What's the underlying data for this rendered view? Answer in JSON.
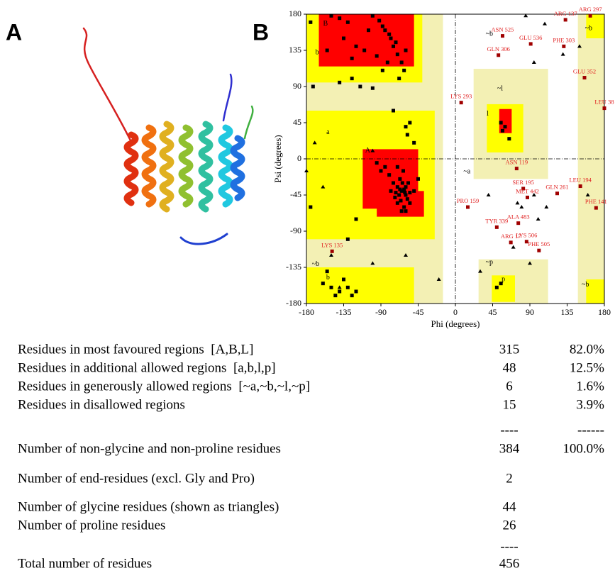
{
  "panel_labels": [
    "A",
    "B"
  ],
  "chart_data": {
    "type": "scatter",
    "xlabel": "Phi (degrees)",
    "ylabel": "Psi (degrees)",
    "xlim": [
      -180,
      180
    ],
    "ylim": [
      -180,
      180
    ],
    "xticks": [
      -180,
      -135,
      -90,
      -45,
      0,
      45,
      90,
      135,
      180
    ],
    "yticks": [
      -180,
      -135,
      -90,
      -45,
      0,
      45,
      90,
      135,
      180
    ],
    "series": [
      {
        "marker": "square",
        "color": "#000000",
        "x": [
          -150,
          -140,
          -130,
          -100,
          -92,
          -88,
          -85,
          -80,
          -78,
          -75,
          -72,
          -70,
          -82,
          -95,
          -110,
          -120,
          -125,
          -135,
          -105,
          -60,
          -65,
          -88,
          -125,
          -140,
          -155,
          -175,
          -172,
          -100,
          -115,
          -68,
          -62,
          -55,
          -60,
          -58,
          -50,
          -75,
          -65,
          -60,
          -70,
          -62,
          -68,
          -58,
          -64,
          -72,
          -55,
          -66,
          -60,
          -70,
          -75,
          -62,
          -57,
          -80,
          -85,
          -90,
          -95,
          -67,
          -63,
          -70,
          -60,
          -55,
          -50,
          -73,
          -78,
          -65,
          -67,
          -61,
          55,
          60,
          57,
          65,
          -160,
          -150,
          -140,
          -135,
          -125,
          -130,
          -120,
          -145,
          -155,
          50,
          55,
          -175,
          -120,
          -45,
          -130
        ],
        "values": [
          178,
          175,
          170,
          178,
          172,
          165,
          160,
          155,
          150,
          140,
          145,
          130,
          120,
          128,
          135,
          140,
          125,
          150,
          160,
          135,
          120,
          110,
          100,
          95,
          135,
          170,
          90,
          88,
          90,
          100,
          110,
          45,
          40,
          30,
          20,
          60,
          -40,
          -45,
          -35,
          -38,
          -45,
          -50,
          -30,
          -42,
          -42,
          -52,
          -35,
          -55,
          -30,
          -60,
          -30,
          -20,
          -10,
          -15,
          -5,
          -25,
          -15,
          -10,
          -65,
          -55,
          -40,
          -48,
          -40,
          -65,
          -38,
          -42,
          45,
          40,
          35,
          25,
          -155,
          -160,
          -165,
          -150,
          -170,
          -160,
          -165,
          -170,
          -140,
          -160,
          -155,
          -60,
          -75,
          -25,
          -100
        ]
      },
      {
        "marker": "triangle",
        "color": "#000000",
        "x": [
          85,
          108,
          95,
          150,
          -160,
          -180,
          -60,
          -100,
          -20,
          -150,
          75,
          80,
          95,
          110,
          40,
          100,
          160,
          70,
          -100,
          -170,
          -140,
          90,
          30,
          130
        ],
        "values": [
          178,
          168,
          120,
          140,
          -35,
          -15,
          -120,
          -130,
          -150,
          -120,
          -55,
          -60,
          -45,
          -60,
          -45,
          -75,
          -45,
          -110,
          10,
          20,
          -160,
          -130,
          -140,
          130
        ]
      }
    ],
    "annotations": [
      {
        "text": "ARG 297",
        "x": 163,
        "y": 178
      },
      {
        "text": "ARG 137",
        "x": 133,
        "y": 173
      },
      {
        "text": "ASN 525",
        "x": 57,
        "y": 153
      },
      {
        "text": "GLU 536",
        "x": 91,
        "y": 143
      },
      {
        "text": "PHE 303",
        "x": 131,
        "y": 140
      },
      {
        "text": "GLN 306",
        "x": 52,
        "y": 129
      },
      {
        "text": "GLU 352",
        "x": 156,
        "y": 101
      },
      {
        "text": "LEU 38",
        "x": 180,
        "y": 63
      },
      {
        "text": "LYS 293",
        "x": 7,
        "y": 70
      },
      {
        "text": "ASN 119",
        "x": 74,
        "y": -12
      },
      {
        "text": "LEU 194",
        "x": 151,
        "y": -34
      },
      {
        "text": "SER 195",
        "x": 82,
        "y": -37
      },
      {
        "text": "GLN 261",
        "x": 123,
        "y": -43
      },
      {
        "text": "MET 442",
        "x": 87,
        "y": -48
      },
      {
        "text": "PHE 141",
        "x": 170,
        "y": -61
      },
      {
        "text": "PRO 159",
        "x": 15,
        "y": -60
      },
      {
        "text": "ALA 483",
        "x": 76,
        "y": -80
      },
      {
        "text": "TYR 339",
        "x": 50,
        "y": -85
      },
      {
        "text": "ARG 17",
        "x": 67,
        "y": -104
      },
      {
        "text": "LYS 506",
        "x": 86,
        "y": -103
      },
      {
        "text": "PHE 505",
        "x": 101,
        "y": -114
      },
      {
        "text": "LYS 135",
        "x": -149,
        "y": -115
      }
    ],
    "region_labels": [
      {
        "text": "B",
        "x": -157,
        "y": 168
      },
      {
        "text": "b",
        "x": -167,
        "y": 132
      },
      {
        "text": "~b",
        "x": 41,
        "y": 155
      },
      {
        "text": "~b",
        "x": 161,
        "y": 162
      },
      {
        "text": "~b",
        "x": 157,
        "y": -157
      },
      {
        "text": "~b",
        "x": -169,
        "y": -131
      },
      {
        "text": "A",
        "x": -106,
        "y": 10
      },
      {
        "text": "a",
        "x": -154,
        "y": 33
      },
      {
        "text": "~a",
        "x": 14,
        "y": -16
      },
      {
        "text": "~l",
        "x": 54,
        "y": 87
      },
      {
        "text": "l",
        "x": 39,
        "y": 56
      },
      {
        "text": "~p",
        "x": 41,
        "y": -129
      },
      {
        "text": "p",
        "x": 58,
        "y": -150
      },
      {
        "text": "b",
        "x": -154,
        "y": -148
      }
    ]
  },
  "table": {
    "rows": [
      {
        "label": "Residues in most favoured regions  [A,B,L]",
        "count": "315",
        "percent": "82.0%"
      },
      {
        "label": "Residues in additional allowed regions  [a,b,l,p]",
        "count": "48",
        "percent": "12.5%"
      },
      {
        "label": "Residues in generously allowed regions  [~a,~b,~l,~p]",
        "count": "6",
        "percent": "1.6%"
      },
      {
        "label": "Residues in disallowed regions",
        "count": "15",
        "percent": "3.9%"
      },
      {
        "count": "----",
        "percent": "------"
      },
      {
        "label": "Number of non-glycine and non-proline residues",
        "count": "384",
        "percent": "100.0%"
      },
      {
        "label": "Number of end-residues (excl. Gly and Pro)",
        "count": "2"
      },
      {
        "label": "Number of glycine residues (shown as triangles)",
        "count": "44"
      },
      {
        "label": "Number of proline residues",
        "count": "26"
      },
      {
        "count": "----"
      },
      {
        "label": "Total number of residues",
        "count": "456"
      }
    ]
  }
}
